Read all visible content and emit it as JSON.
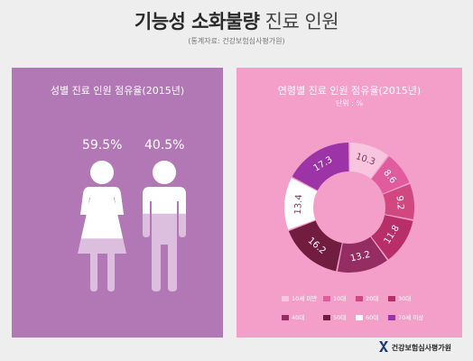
{
  "header": {
    "title_bold": "기능성 소화불량",
    "title_light": "진료 인원",
    "source": "(통계자료: 건강보험심사평가원)"
  },
  "gender_panel": {
    "title": "성별 진료 인원 점유율(2015년)",
    "female_pct": "59.5%",
    "male_pct": "40.5%",
    "background": "#b278b5"
  },
  "age_panel": {
    "title": "연령별 진료 인원 점유율(2015년)",
    "unit": "단위 : %",
    "background": "#f39fca"
  },
  "footer": {
    "org": "건강보험심사평가원"
  },
  "chart_data": [
    {
      "type": "pictogram",
      "title": "성별 진료 인원 점유율(2015년)",
      "categories": [
        "여성",
        "남성"
      ],
      "values": [
        59.5,
        40.5
      ]
    },
    {
      "type": "pie",
      "title": "연령별 진료 인원 점유율(2015년)",
      "unit": "단위 : %",
      "categories": [
        "10세 미만",
        "10대",
        "20대",
        "30대",
        "40대",
        "50대",
        "60대",
        "70세 이상"
      ],
      "values": [
        10.3,
        8.6,
        9.2,
        11.8,
        13.2,
        16.2,
        13.4,
        17.3
      ],
      "colors": [
        "#f7c6de",
        "#e05c9e",
        "#d1477f",
        "#b82e68",
        "#952d63",
        "#721c40",
        "#ffffff",
        "#9c33a6"
      ],
      "label_colors": [
        "#7a3a5d",
        "#ffffff",
        "#ffffff",
        "#ffffff",
        "#ffffff",
        "#ffffff",
        "#7a3a5d",
        "#ffffff"
      ],
      "legend_position": "bottom"
    }
  ]
}
